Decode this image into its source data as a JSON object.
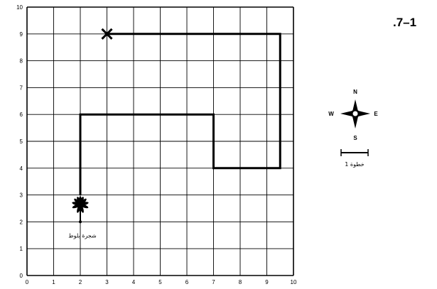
{
  "problem_number": ".7–1",
  "chart_data": {
    "type": "grid-path",
    "xlim": [
      0,
      10
    ],
    "ylim": [
      0,
      10
    ],
    "x_ticks": [
      "0",
      "1",
      "2",
      "3",
      "4",
      "5",
      "6",
      "7",
      "8",
      "9",
      "10"
    ],
    "y_ticks": [
      "0",
      "1",
      "2",
      "3",
      "4",
      "5",
      "6",
      "7",
      "8",
      "9",
      "10"
    ],
    "grid": true,
    "path": [
      [
        2,
        3
      ],
      [
        2,
        6
      ],
      [
        7,
        6
      ],
      [
        7,
        4
      ],
      [
        9.5,
        4
      ],
      [
        9.5,
        9
      ],
      [
        3,
        9
      ]
    ],
    "tree": {
      "x": 2,
      "y": 2,
      "label": "شجرة بلوط"
    },
    "goal": {
      "x": 3,
      "y": 9,
      "marker": "x-mark-icon"
    }
  },
  "compass": {
    "north": "N",
    "south": "S",
    "east": "E",
    "west": "W"
  },
  "scale": {
    "label": "خطوة 1"
  },
  "colors": {
    "grid": "#000000",
    "path": "#000000",
    "background": "#ffffff"
  }
}
